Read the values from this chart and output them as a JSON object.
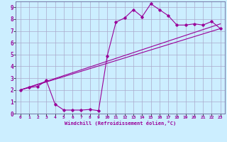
{
  "title": "",
  "xlabel": "Windchill (Refroidissement éolien,°C)",
  "ylabel": "",
  "bg_color": "#cceeff",
  "line_color": "#990099",
  "grid_color": "#aaaacc",
  "spine_color": "#666699",
  "xlim": [
    -0.5,
    23.5
  ],
  "ylim": [
    0,
    9.5
  ],
  "xticks": [
    0,
    1,
    2,
    3,
    4,
    5,
    6,
    7,
    8,
    9,
    10,
    11,
    12,
    13,
    14,
    15,
    16,
    17,
    18,
    19,
    20,
    21,
    22,
    23
  ],
  "yticks": [
    0,
    1,
    2,
    3,
    4,
    5,
    6,
    7,
    8,
    9
  ],
  "curve1_x": [
    0,
    1,
    2,
    3,
    4,
    5,
    6,
    7,
    8,
    9,
    10,
    11,
    12,
    13,
    14,
    15,
    16,
    17,
    18,
    19,
    20,
    21,
    22,
    23
  ],
  "curve1_y": [
    2.0,
    2.2,
    2.3,
    2.8,
    0.8,
    0.3,
    0.3,
    0.3,
    0.35,
    0.25,
    4.9,
    7.75,
    8.1,
    8.8,
    8.2,
    9.3,
    8.8,
    8.3,
    7.5,
    7.5,
    7.6,
    7.5,
    7.8,
    7.2
  ],
  "curve2_x": [
    0,
    23
  ],
  "curve2_y": [
    2.0,
    7.2
  ],
  "curve3_x": [
    0,
    23
  ],
  "curve3_y": [
    2.0,
    7.6
  ]
}
